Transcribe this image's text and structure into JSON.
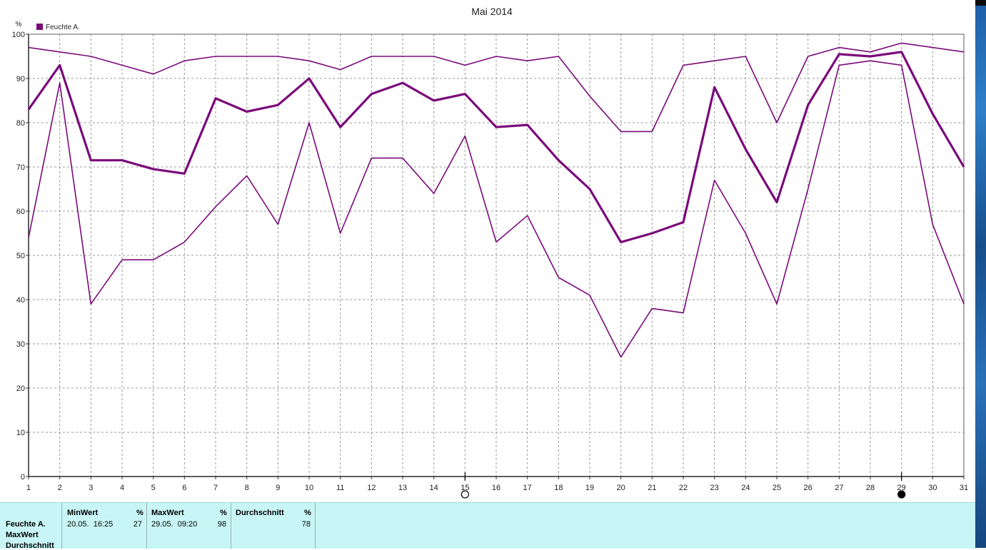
{
  "chart_data": {
    "type": "line",
    "title": "Mai 2014",
    "ylabel": "%",
    "legend": "Feuchte A.",
    "legend_position": "top-left",
    "grid": true,
    "ylim": [
      0,
      100
    ],
    "xlim": [
      1,
      31
    ],
    "x": [
      1,
      2,
      3,
      4,
      5,
      6,
      7,
      8,
      9,
      10,
      11,
      12,
      13,
      14,
      15,
      16,
      17,
      18,
      19,
      20,
      21,
      22,
      23,
      24,
      25,
      26,
      27,
      28,
      29,
      30,
      31
    ],
    "series_color": "#7a0a7a",
    "series": [
      {
        "kind": "max",
        "values": [
          97,
          96,
          95,
          93,
          91,
          94,
          95,
          95,
          95,
          94,
          92,
          95,
          95,
          95,
          93,
          95,
          94,
          95,
          86,
          78,
          78,
          93,
          94,
          95,
          80,
          95,
          97,
          96,
          98,
          97,
          96
        ]
      },
      {
        "kind": "mean",
        "values": [
          83,
          93,
          71.5,
          71.5,
          69.5,
          68.5,
          85.5,
          82.5,
          84,
          90,
          79,
          86.5,
          89,
          85,
          86.5,
          79,
          79.5,
          71.5,
          65,
          53,
          55,
          57.5,
          88,
          74,
          62,
          84,
          95.5,
          95,
          96,
          82,
          70
        ]
      },
      {
        "kind": "min",
        "values": [
          54,
          89,
          39,
          49,
          49,
          53,
          61,
          68,
          57,
          80,
          55,
          72,
          72,
          64,
          77,
          53,
          59,
          45,
          41,
          27,
          38,
          37,
          67,
          55,
          39,
          65,
          93,
          94,
          93,
          57,
          39
        ]
      }
    ],
    "y_ticks": [
      0,
      10,
      20,
      30,
      40,
      50,
      60,
      70,
      80,
      90,
      100
    ],
    "x_ticks": [
      "1",
      "2",
      "3",
      "4",
      "5",
      "6",
      "7",
      "8",
      "9",
      "10",
      "11",
      "12",
      "13",
      "14",
      "15",
      "16",
      "17",
      "18",
      "19",
      "20",
      "21",
      "22",
      "23",
      "24",
      "25",
      "26",
      "27",
      "28",
      "29",
      "30",
      "31"
    ],
    "markers": [
      {
        "day": 15,
        "kind": "open-circle"
      },
      {
        "day": 29,
        "kind": "filled-circle"
      }
    ]
  },
  "stats": {
    "series_label": "Feuchte A.",
    "row_labels": [
      "Feuchte A.",
      "MaxWert",
      "Durchschnitt"
    ],
    "columns": [
      {
        "header": "MinWert",
        "unit": "%",
        "when": "20.05.  16:25",
        "value": "27"
      },
      {
        "header": "MaxWert",
        "unit": "%",
        "when": "29.05.  09:20",
        "value": "98"
      },
      {
        "header": "Durchschnitt",
        "unit": "%",
        "when": "",
        "value": "78"
      }
    ]
  }
}
